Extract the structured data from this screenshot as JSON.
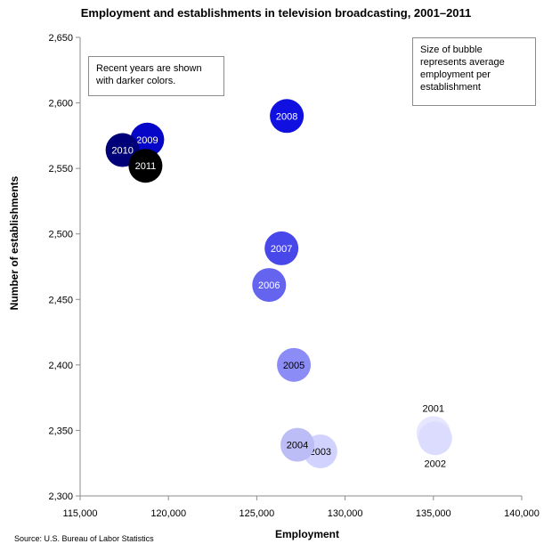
{
  "chart_data": {
    "type": "scatter",
    "subtype": "bubble",
    "title": "Employment and establishments in television broadcasting, 2001–2011",
    "xlabel": "Employment",
    "ylabel": "Number of establishments",
    "xlim": [
      115000,
      140000
    ],
    "ylim": [
      2300,
      2650
    ],
    "x_ticks": [
      115000,
      120000,
      125000,
      130000,
      135000,
      140000
    ],
    "x_tick_labels": [
      "115,000",
      "120,000",
      "125,000",
      "130,000",
      "135,000",
      "140,000"
    ],
    "y_ticks": [
      2300,
      2350,
      2400,
      2450,
      2500,
      2550,
      2600,
      2650
    ],
    "y_tick_labels": [
      "2,300",
      "2,350",
      "2,400",
      "2,450",
      "2,500",
      "2,550",
      "2,600",
      "2,650"
    ],
    "grid": false,
    "points": [
      {
        "label": "2001",
        "x": 135000,
        "y": 2348,
        "color": "#e6e6ff",
        "label_position": "above",
        "label_color": "#000000"
      },
      {
        "label": "2002",
        "x": 135100,
        "y": 2344,
        "color": "#dcdcff",
        "label_position": "below",
        "label_color": "#000000"
      },
      {
        "label": "2003",
        "x": 128600,
        "y": 2334,
        "color": "#d2d2ff",
        "label_position": "center",
        "label_color": "#000000"
      },
      {
        "label": "2004",
        "x": 127300,
        "y": 2339,
        "color": "#bcbcf6",
        "label_position": "center",
        "label_color": "#000000"
      },
      {
        "label": "2005",
        "x": 127100,
        "y": 2400,
        "color": "#8c8cf6",
        "label_position": "center",
        "label_color": "#000000"
      },
      {
        "label": "2006",
        "x": 125700,
        "y": 2461,
        "color": "#6464ef",
        "label_position": "center",
        "label_color": "#ffffff"
      },
      {
        "label": "2007",
        "x": 126400,
        "y": 2489,
        "color": "#4848ea",
        "label_position": "center",
        "label_color": "#ffffff"
      },
      {
        "label": "2008",
        "x": 126700,
        "y": 2590,
        "color": "#1010e0",
        "label_position": "center",
        "label_color": "#ffffff"
      },
      {
        "label": "2009",
        "x": 118800,
        "y": 2572,
        "color": "#0606c8",
        "label_position": "center",
        "label_color": "#ffffff"
      },
      {
        "label": "2010",
        "x": 117400,
        "y": 2564,
        "color": "#000078",
        "label_position": "center",
        "label_color": "#ffffff"
      },
      {
        "label": "2011",
        "x": 118700,
        "y": 2552,
        "color": "#000000",
        "label_position": "center",
        "label_color": "#ffffff"
      }
    ],
    "annotations": [
      "Recent years are shown with darker colors.",
      "Size of bubble represents average employment per establishment"
    ],
    "source": "Source: U.S. Bureau of Labor Statistics"
  }
}
